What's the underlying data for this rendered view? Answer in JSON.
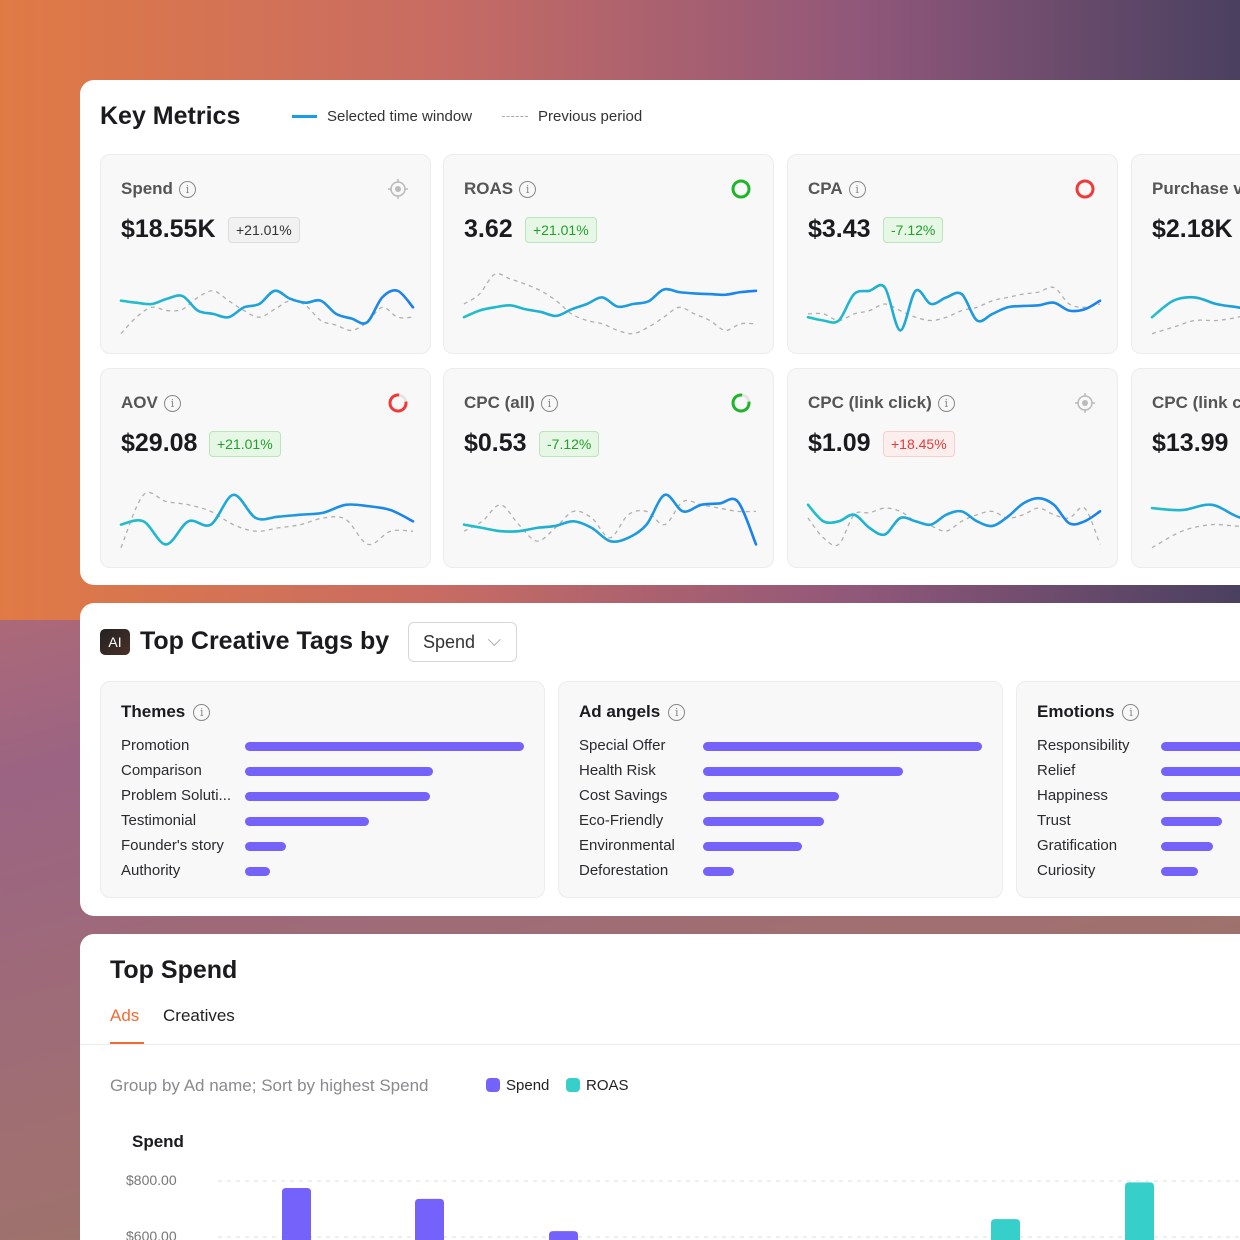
{
  "colors": {
    "accent": "#f26a33",
    "series_current_start": "#22c0c8",
    "series_current_end": "#1a7ff0",
    "previous": "#b0b0b0",
    "spend": "#7462fb",
    "roas": "#36cfc9",
    "good": "#22a02a",
    "bad": "#e23b3b"
  },
  "key_metrics": {
    "title": "Key Metrics",
    "legend_current": "Selected time window",
    "legend_previous": "Previous period",
    "cards": [
      {
        "title": "Spend",
        "value": "$18.55K",
        "change": "+21.01%",
        "tone": "neutral",
        "status": "target-icon",
        "current": [
          55,
          52,
          50,
          58,
          62,
          40,
          35,
          30,
          45,
          50,
          70,
          58,
          52,
          55,
          35,
          28,
          22,
          60,
          70,
          45
        ],
        "previous": [
          5,
          30,
          45,
          40,
          42,
          60,
          70,
          55,
          40,
          30,
          42,
          55,
          48,
          25,
          18,
          10,
          22,
          45,
          30,
          30
        ]
      },
      {
        "title": "ROAS",
        "value": "3.62",
        "change": "+21.01%",
        "tone": "good",
        "status": "ring-green",
        "current": [
          30,
          40,
          45,
          48,
          42,
          38,
          32,
          42,
          50,
          60,
          46,
          50,
          54,
          72,
          68,
          66,
          65,
          64,
          68,
          70
        ],
        "previous": [
          50,
          65,
          95,
          88,
          80,
          70,
          55,
          35,
          25,
          20,
          10,
          5,
          15,
          30,
          45,
          35,
          25,
          10,
          20,
          20
        ]
      },
      {
        "title": "CPA",
        "value": "$3.43",
        "change": "-7.12%",
        "tone": "good",
        "status": "ring-red",
        "current": [
          30,
          25,
          25,
          65,
          70,
          75,
          10,
          70,
          50,
          60,
          65,
          25,
          35,
          45,
          47,
          48,
          52,
          40,
          42,
          55
        ],
        "previous": [
          35,
          35,
          25,
          35,
          40,
          50,
          40,
          30,
          25,
          30,
          40,
          45,
          55,
          60,
          65,
          68,
          75,
          50,
          45,
          50
        ]
      },
      {
        "title": "Purchase value",
        "value": "$2.18K",
        "change": "",
        "tone": "neutral",
        "status": "",
        "current": [
          30,
          55,
          60,
          50,
          45,
          40,
          55,
          75
        ],
        "previous": [
          5,
          15,
          25,
          25,
          30,
          40,
          50,
          60
        ]
      },
      {
        "title": "AOV",
        "value": "$29.08",
        "change": "+21.01%",
        "tone": "good",
        "status": "progress-red",
        "current": [
          40,
          45,
          10,
          45,
          40,
          85,
          50,
          52,
          55,
          58,
          70,
          68,
          62,
          45
        ],
        "previous": [
          5,
          85,
          75,
          70,
          60,
          40,
          30,
          35,
          40,
          50,
          48,
          10,
          30,
          30
        ]
      },
      {
        "title": "CPC (all)",
        "value": "$0.53",
        "change": "-7.12%",
        "tone": "good",
        "status": "progress-green",
        "current": [
          40,
          35,
          30,
          30,
          35,
          38,
          45,
          35,
          15,
          20,
          40,
          85,
          60,
          70,
          72,
          75,
          10
        ],
        "previous": [
          30,
          45,
          70,
          40,
          15,
          35,
          60,
          50,
          20,
          55,
          60,
          40,
          75,
          70,
          65,
          60,
          60
        ]
      },
      {
        "title": "CPC (link click)",
        "value": "$1.09",
        "change": "+18.45%",
        "tone": "bad",
        "status": "target-icon",
        "current": [
          70,
          45,
          45,
          55,
          35,
          25,
          50,
          45,
          40,
          55,
          60,
          45,
          38,
          52,
          72,
          80,
          70,
          42,
          45,
          60
        ],
        "previous": [
          50,
          20,
          10,
          55,
          58,
          65,
          60,
          45,
          38,
          30,
          45,
          55,
          60,
          50,
          55,
          65,
          55,
          50,
          65,
          10
        ]
      },
      {
        "title": "CPC (link click)",
        "value": "$13.99",
        "change": "",
        "tone": "neutral",
        "status": "",
        "current": [
          65,
          62,
          70,
          50,
          55,
          80
        ],
        "previous": [
          5,
          30,
          40,
          38,
          50,
          60
        ]
      }
    ]
  },
  "creative_tags": {
    "ai_badge": "AI",
    "title": "Top Creative Tags by",
    "metric_select": "Spend",
    "groups": [
      {
        "title": "Themes",
        "items": [
          {
            "label": "Promotion",
            "value": 1
          },
          {
            "label": "Comparison",
            "value": 0.674
          },
          {
            "label": "Problem Soluti...",
            "value": 0.663
          },
          {
            "label": "Testimonial",
            "value": 0.444
          },
          {
            "label": "Founder's story",
            "value": 0.147
          },
          {
            "label": "Authority",
            "value": 0.09
          }
        ]
      },
      {
        "title": "Ad angels",
        "items": [
          {
            "label": "Special Offer",
            "value": 1
          },
          {
            "label": "Health Risk",
            "value": 0.717
          },
          {
            "label": "Cost Savings",
            "value": 0.487
          },
          {
            "label": "Eco-Friendly",
            "value": 0.434
          },
          {
            "label": "Environmental",
            "value": 0.355
          },
          {
            "label": "Deforestation",
            "value": 0.111
          }
        ]
      },
      {
        "title": "Emotions",
        "items": [
          {
            "label": "Responsibility",
            "value": 1
          },
          {
            "label": "Relief",
            "value": 0.9
          },
          {
            "label": "Happiness",
            "value": 0.8
          },
          {
            "label": "Trust",
            "value": 0.219
          },
          {
            "label": "Gratification",
            "value": 0.186
          },
          {
            "label": "Curiosity",
            "value": 0.133
          }
        ]
      }
    ]
  },
  "top_spend": {
    "title": "Top Spend",
    "tabs": [
      {
        "label": "Ads",
        "active": true
      },
      {
        "label": "Creatives",
        "active": false
      }
    ],
    "description": "Group by Ad name; Sort by highest Spend",
    "chart_data": {
      "type": "bar",
      "ylabel": "Spend",
      "yticks": [
        "$800.00",
        "$600.00"
      ],
      "series": [
        {
          "name": "Spend",
          "values": [
            775,
            736,
            621
          ]
        },
        {
          "name": "ROAS",
          "values": [
            664,
            795
          ]
        }
      ]
    }
  }
}
